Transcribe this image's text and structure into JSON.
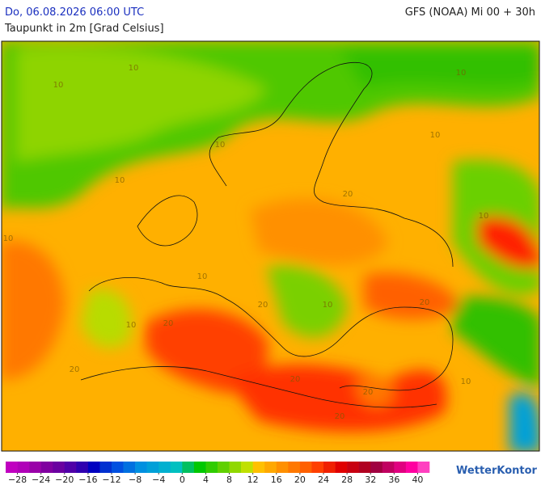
{
  "header": {
    "date": "Do, 06.08.2026 06:00 UTC",
    "parameter": "Taupunkt in 2m [Grad Celsius]",
    "model": "GFS (NOAA) Mi 00 + 30h"
  },
  "map": {
    "contour_labels": [
      "10",
      "10",
      "10",
      "10",
      "10",
      "10",
      "10",
      "10",
      "10",
      "20",
      "20",
      "20",
      "20",
      "20",
      "20",
      "10",
      "20",
      "10",
      "10",
      "20"
    ]
  },
  "legend": {
    "lim": [
      -30,
      42
    ],
    "colors": [
      "#c000c0",
      "#b000b8",
      "#9900a8",
      "#8000a0",
      "#6a00a0",
      "#5000a8",
      "#3000b0",
      "#0000c0",
      "#0030d0",
      "#0050e0",
      "#0070e0",
      "#0090e0",
      "#00a0d8",
      "#00b0d0",
      "#00c0c0",
      "#00c060",
      "#00c800",
      "#30cc00",
      "#60d000",
      "#90d800",
      "#c0e000",
      "#ffc000",
      "#ffa800",
      "#ff9000",
      "#ff7800",
      "#ff6000",
      "#ff4000",
      "#f02000",
      "#e00000",
      "#c80010",
      "#b00020",
      "#a00040",
      "#c00060",
      "#e00080",
      "#ff00a0",
      "#ff40c0"
    ],
    "ticks": [
      {
        "value": -28,
        "label": "−28"
      },
      {
        "value": -24,
        "label": "−24"
      },
      {
        "value": -20,
        "label": "−20"
      },
      {
        "value": -16,
        "label": "−16"
      },
      {
        "value": -12,
        "label": "−12"
      },
      {
        "value": -8,
        "label": "−8"
      },
      {
        "value": -4,
        "label": "−4"
      },
      0,
      4,
      8,
      12,
      16,
      20,
      24,
      28,
      32,
      36,
      40
    ]
  },
  "logo": "WetterKontor"
}
